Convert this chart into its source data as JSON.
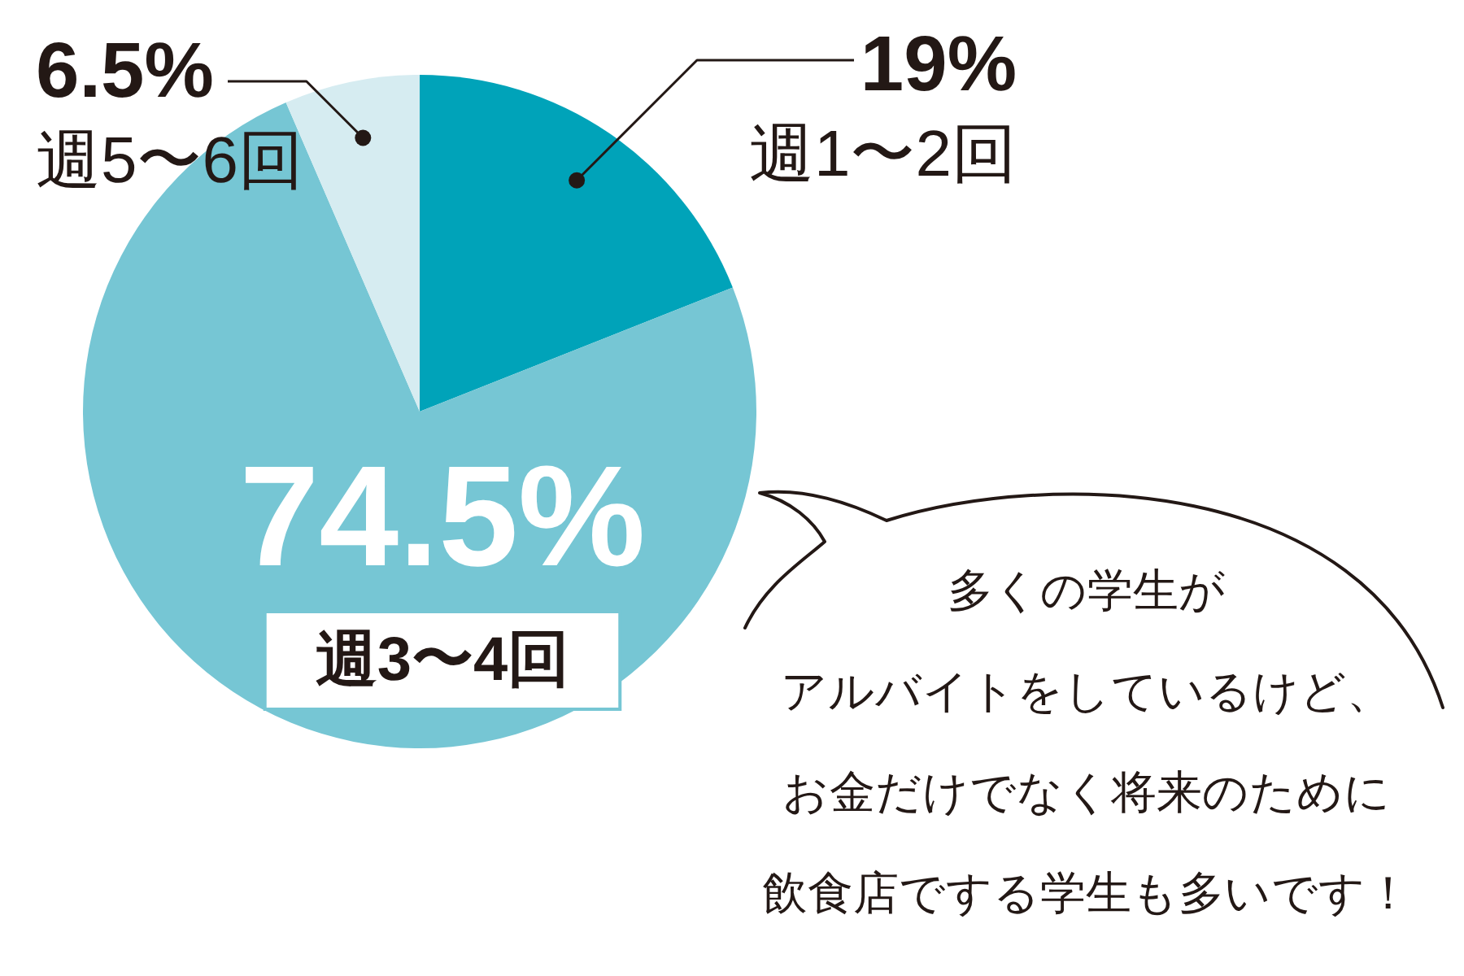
{
  "chart_data": {
    "type": "pie",
    "categories": [
      "週1〜2回",
      "週3〜4回",
      "週5〜6回"
    ],
    "values": [
      19,
      74.5,
      6.5
    ],
    "colors": [
      "#00a3b9",
      "#76c6d4",
      "#d6ecf1"
    ],
    "value_labels": [
      "19%",
      "74.5%",
      "6.5%"
    ],
    "annotations": [
      "多くの学生が",
      "アルバイトをしているけど、",
      "お金だけでなく将来のために",
      "飲食店でする学生も多いです！"
    ]
  }
}
